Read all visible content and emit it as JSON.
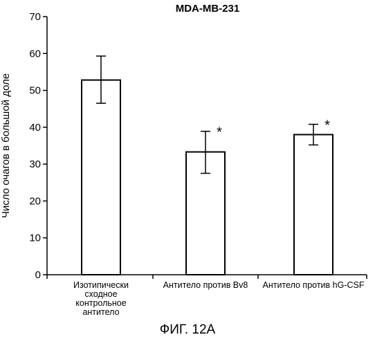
{
  "figure_label": "ФИГ. 12А",
  "chart_data": {
    "type": "bar",
    "title": "MDA-MB-231",
    "ylabel": "Число очагов в большой доле",
    "xlabel": "",
    "ylim": [
      0,
      70
    ],
    "yticks": [
      0,
      10,
      20,
      30,
      40,
      50,
      60,
      70
    ],
    "categories": [
      [
        "Изотипически",
        "сходное",
        "контрольное",
        "антитело"
      ],
      [
        "Антитело против Bv8"
      ],
      [
        "Антитело против hG-CSF"
      ]
    ],
    "values": [
      52.8,
      33.3,
      38.0
    ],
    "error_low": [
      46.5,
      27.5,
      35.2
    ],
    "error_high": [
      59.3,
      38.9,
      40.8
    ],
    "significance": [
      "",
      "*",
      "*"
    ],
    "bar_color": "#ffffff",
    "line_color": "#000000",
    "grid": false
  }
}
